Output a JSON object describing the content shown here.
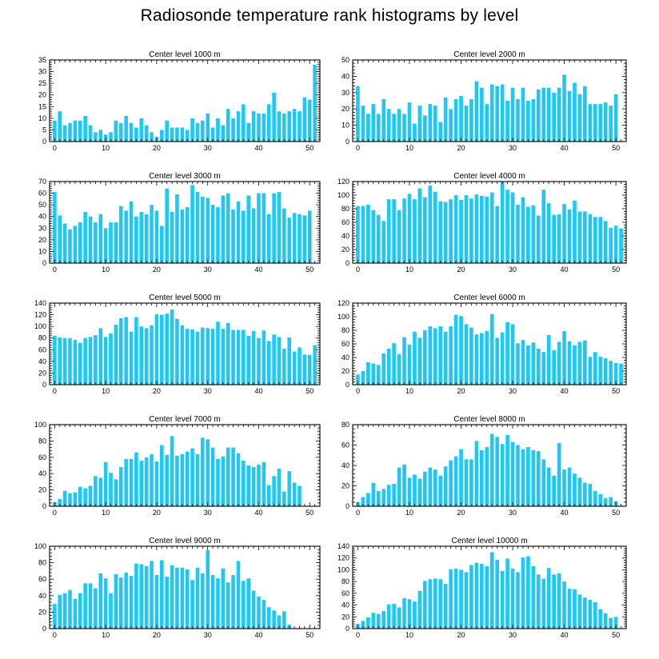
{
  "title": "Radiosonde temperature rank histograms by level",
  "chart_data": [
    {
      "type": "bar",
      "title": "Center level 1000 m",
      "xlim": [
        -1,
        52
      ],
      "ylim": [
        0,
        35
      ],
      "xticks": [
        0,
        10,
        20,
        30,
        40,
        50
      ],
      "yticks": [
        0,
        5,
        10,
        15,
        20,
        25,
        30,
        35
      ],
      "values": [
        9,
        13,
        7,
        8,
        9,
        9,
        11,
        7,
        4,
        5,
        3,
        4,
        9,
        8,
        11,
        8,
        6,
        10,
        7,
        4,
        2,
        5,
        9,
        6,
        6,
        6,
        5,
        10,
        8,
        9,
        12,
        6,
        10,
        7,
        14,
        10,
        13,
        16,
        8,
        13,
        12,
        12,
        16,
        21,
        13,
        12,
        13,
        14,
        13,
        19,
        18,
        33
      ]
    },
    {
      "type": "bar",
      "title": "Center level 2000 m",
      "xlim": [
        -1,
        52
      ],
      "ylim": [
        0,
        50
      ],
      "xticks": [
        0,
        10,
        20,
        30,
        40,
        50
      ],
      "yticks": [
        0,
        10,
        20,
        30,
        40,
        50
      ],
      "values": [
        34,
        22,
        17,
        23,
        17,
        26,
        20,
        17,
        20,
        17,
        24,
        11,
        22,
        16,
        23,
        22,
        12,
        27,
        20,
        26,
        28,
        22,
        26,
        37,
        33,
        23,
        35,
        34,
        35,
        25,
        33,
        26,
        33,
        25,
        26,
        32,
        33,
        33,
        30,
        33,
        41,
        31,
        36,
        29,
        34,
        23,
        23,
        23,
        24,
        22,
        29
      ]
    },
    {
      "type": "bar",
      "title": "Center level 3000 m",
      "xlim": [
        -1,
        52
      ],
      "ylim": [
        0,
        70
      ],
      "xticks": [
        0,
        10,
        20,
        30,
        40,
        50
      ],
      "yticks": [
        0,
        10,
        20,
        30,
        40,
        50,
        60,
        70
      ],
      "values": [
        61,
        41,
        34,
        29,
        32,
        35,
        44,
        40,
        35,
        42,
        30,
        35,
        35,
        49,
        45,
        53,
        40,
        44,
        42,
        50,
        45,
        32,
        64,
        44,
        59,
        46,
        48,
        67,
        61,
        57,
        56,
        50,
        48,
        58,
        60,
        46,
        53,
        45,
        58,
        47,
        60,
        60,
        42,
        60,
        61,
        47,
        39,
        43,
        42,
        41,
        45
      ]
    },
    {
      "type": "bar",
      "title": "Center level 4000 m",
      "xlim": [
        -1,
        52
      ],
      "ylim": [
        0,
        120
      ],
      "xticks": [
        0,
        10,
        20,
        30,
        40,
        50
      ],
      "yticks": [
        0,
        20,
        40,
        60,
        80,
        100,
        120
      ],
      "values": [
        84,
        84,
        86,
        78,
        71,
        62,
        94,
        94,
        78,
        95,
        102,
        94,
        110,
        97,
        114,
        105,
        91,
        90,
        94,
        100,
        93,
        100,
        95,
        101,
        99,
        98,
        104,
        84,
        119,
        108,
        104,
        86,
        97,
        83,
        85,
        70,
        108,
        88,
        71,
        72,
        87,
        79,
        92,
        76,
        76,
        72,
        68,
        68,
        62,
        52,
        55,
        51
      ]
    },
    {
      "type": "bar",
      "title": "Center level 5000 m",
      "xlim": [
        -1,
        52
      ],
      "ylim": [
        0,
        140
      ],
      "xticks": [
        0,
        10,
        20,
        30,
        40,
        50
      ],
      "yticks": [
        0,
        20,
        40,
        60,
        80,
        100,
        120,
        140
      ],
      "values": [
        84,
        81,
        80,
        80,
        77,
        72,
        80,
        82,
        85,
        97,
        82,
        88,
        103,
        114,
        116,
        91,
        116,
        100,
        97,
        102,
        121,
        120,
        122,
        129,
        113,
        102,
        96,
        95,
        91,
        98,
        97,
        96,
        108,
        96,
        106,
        94,
        94,
        94,
        84,
        92,
        80,
        93,
        75,
        86,
        82,
        62,
        81,
        57,
        64,
        52,
        51,
        68
      ]
    },
    {
      "type": "bar",
      "title": "Center level 6000 m",
      "xlim": [
        -1,
        52
      ],
      "ylim": [
        0,
        120
      ],
      "xticks": [
        0,
        10,
        20,
        30,
        40,
        50
      ],
      "yticks": [
        0,
        20,
        40,
        60,
        80,
        100,
        120
      ],
      "values": [
        15,
        20,
        33,
        31,
        29,
        46,
        53,
        61,
        45,
        70,
        59,
        78,
        69,
        80,
        86,
        83,
        86,
        78,
        86,
        103,
        101,
        89,
        84,
        74,
        76,
        79,
        104,
        69,
        77,
        92,
        89,
        61,
        66,
        58,
        62,
        53,
        48,
        73,
        51,
        63,
        79,
        64,
        58,
        63,
        65,
        41,
        48,
        41,
        39,
        35,
        32,
        31
      ]
    },
    {
      "type": "bar",
      "title": "Center level 7000 m",
      "xlim": [
        -1,
        52
      ],
      "ylim": [
        0,
        100
      ],
      "xticks": [
        0,
        10,
        20,
        30,
        40,
        50
      ],
      "yticks": [
        0,
        20,
        40,
        60,
        80,
        100
      ],
      "values": [
        5,
        9,
        19,
        16,
        17,
        24,
        22,
        25,
        37,
        35,
        54,
        41,
        33,
        48,
        58,
        58,
        66,
        56,
        60,
        64,
        55,
        75,
        63,
        86,
        62,
        64,
        67,
        71,
        64,
        84,
        82,
        72,
        58,
        61,
        72,
        72,
        65,
        56,
        50,
        48,
        51,
        54,
        26,
        37,
        46,
        18,
        43,
        29,
        25
      ]
    },
    {
      "type": "bar",
      "title": "Center level 8000 m",
      "xlim": [
        -1,
        52
      ],
      "ylim": [
        0,
        80
      ],
      "xticks": [
        0,
        10,
        20,
        30,
        40,
        50
      ],
      "yticks": [
        0,
        20,
        40,
        60,
        80
      ],
      "values": [
        4,
        9,
        13,
        23,
        15,
        17,
        21,
        22,
        38,
        41,
        28,
        31,
        27,
        34,
        38,
        36,
        30,
        39,
        45,
        49,
        56,
        46,
        46,
        64,
        55,
        58,
        71,
        68,
        61,
        70,
        63,
        60,
        56,
        58,
        55,
        54,
        46,
        38,
        30,
        62,
        36,
        38,
        32,
        28,
        23,
        22,
        15,
        12,
        8,
        9,
        5
      ]
    },
    {
      "type": "bar",
      "title": "Center level 9000 m",
      "xlim": [
        -1,
        52
      ],
      "ylim": [
        0,
        100
      ],
      "xticks": [
        0,
        10,
        20,
        30,
        40,
        50
      ],
      "yticks": [
        0,
        20,
        40,
        60,
        80,
        100
      ],
      "values": [
        30,
        41,
        43,
        47,
        36,
        43,
        55,
        55,
        49,
        67,
        61,
        43,
        66,
        62,
        68,
        64,
        79,
        78,
        76,
        82,
        65,
        83,
        63,
        77,
        74,
        74,
        72,
        59,
        74,
        67,
        95,
        65,
        61,
        73,
        56,
        65,
        82,
        58,
        61,
        46,
        39,
        35,
        26,
        22,
        16,
        21,
        5
      ]
    },
    {
      "type": "bar",
      "title": "Center level 10000 m",
      "xlim": [
        -1,
        52
      ],
      "ylim": [
        0,
        140
      ],
      "xticks": [
        0,
        10,
        20,
        30,
        40,
        50
      ],
      "yticks": [
        0,
        20,
        40,
        60,
        80,
        100,
        120,
        140
      ],
      "values": [
        8,
        13,
        19,
        27,
        25,
        30,
        41,
        42,
        36,
        52,
        50,
        46,
        64,
        81,
        84,
        85,
        84,
        76,
        101,
        102,
        100,
        96,
        108,
        112,
        110,
        106,
        130,
        117,
        98,
        119,
        102,
        96,
        121,
        123,
        106,
        92,
        85,
        103,
        92,
        94,
        80,
        68,
        67,
        58,
        53,
        49,
        45,
        33,
        26,
        18,
        20
      ]
    }
  ]
}
